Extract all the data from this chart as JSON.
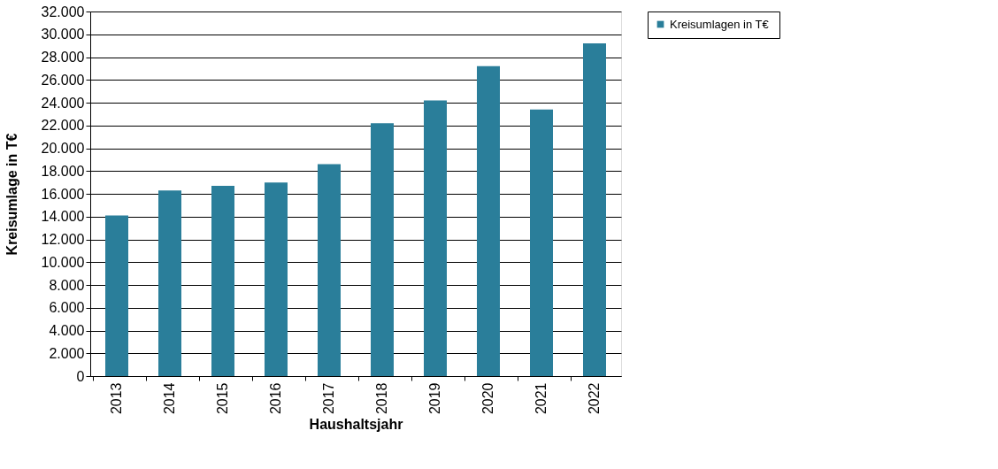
{
  "chart_data": {
    "type": "bar",
    "xlabel": "Haushaltsjahr",
    "ylabel": "Kreisumlage in T€",
    "categories": [
      "2013",
      "2014",
      "2015",
      "2016",
      "2017",
      "2018",
      "2019",
      "2020",
      "2021",
      "2022"
    ],
    "series": [
      {
        "name": "Kreisumlagen  in T€",
        "color": "#2a7e9a",
        "values": [
          14100,
          16300,
          16700,
          17000,
          18600,
          22200,
          24200,
          27200,
          23400,
          29200
        ]
      }
    ],
    "ylim": [
      0,
      32000
    ],
    "yticks": [
      {
        "value": 0,
        "label": "0"
      },
      {
        "value": 2000,
        "label": "2.000"
      },
      {
        "value": 4000,
        "label": "4.000"
      },
      {
        "value": 6000,
        "label": "6.000"
      },
      {
        "value": 8000,
        "label": "8.000"
      },
      {
        "value": 10000,
        "label": "10.000"
      },
      {
        "value": 12000,
        "label": "12.000"
      },
      {
        "value": 14000,
        "label": "14.000"
      },
      {
        "value": 16000,
        "label": "16.000"
      },
      {
        "value": 18000,
        "label": "18.000"
      },
      {
        "value": 20000,
        "label": "20.000"
      },
      {
        "value": 22000,
        "label": "22.000"
      },
      {
        "value": 24000,
        "label": "24.000"
      },
      {
        "value": 26000,
        "label": "26.000"
      },
      {
        "value": 28000,
        "label": "28.000"
      },
      {
        "value": 30000,
        "label": "30.000"
      },
      {
        "value": 32000,
        "label": "32.000"
      }
    ],
    "grid": "y",
    "legend": "right"
  }
}
